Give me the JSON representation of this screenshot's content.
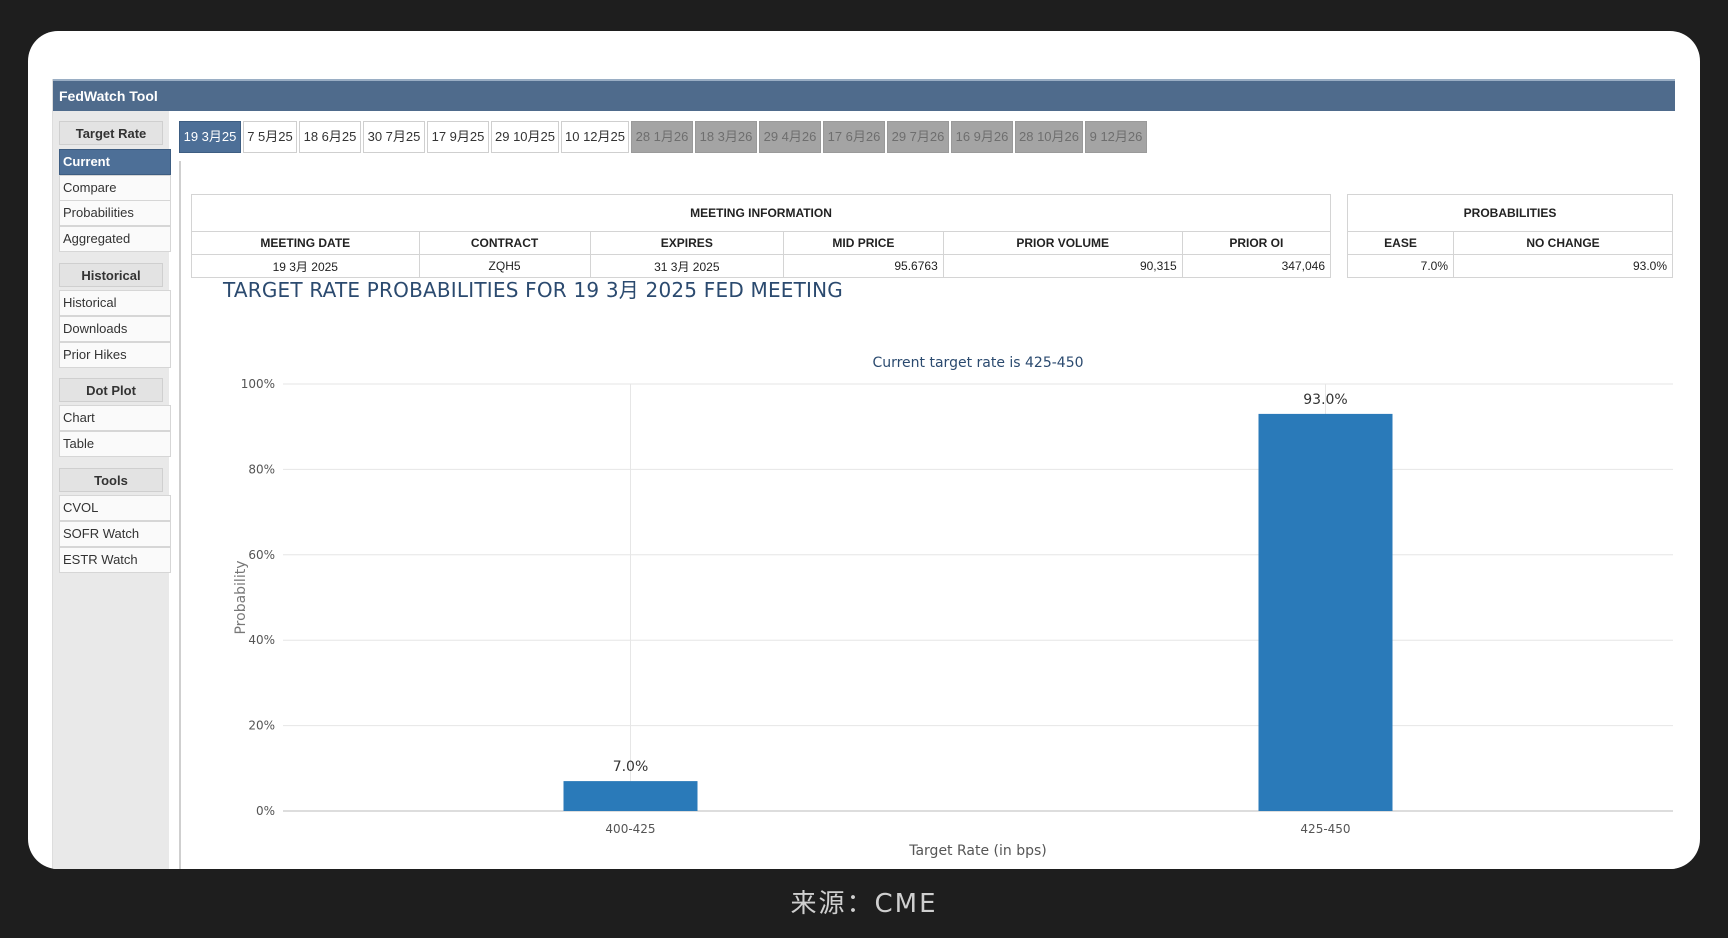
{
  "app": {
    "title": "FedWatch Tool"
  },
  "sidebar": {
    "sections": [
      {
        "heading": "Target Rate",
        "items": [
          "Current",
          "Compare",
          "Probabilities",
          "Aggregated"
        ]
      },
      {
        "heading": "Historical",
        "items": [
          "Historical",
          "Downloads",
          "Prior Hikes"
        ]
      },
      {
        "heading": "Dot Plot",
        "items": [
          "Chart",
          "Table"
        ]
      },
      {
        "heading": "Tools",
        "items": [
          "CVOL",
          "SOFR Watch",
          "ESTR Watch"
        ]
      }
    ],
    "active_item": "Current"
  },
  "meeting_tabs": [
    "19 3月25",
    "7 5月25",
    "18 6月25",
    "30 7月25",
    "17 9月25",
    "29 10月25",
    "10 12月25",
    "28 1月26",
    "18 3月26",
    "29 4月26",
    "17 6月26",
    "29 7月26",
    "16 9月26",
    "28 10月26",
    "9 12月26"
  ],
  "meeting_info": {
    "title": "MEETING INFORMATION",
    "headers": [
      "MEETING DATE",
      "CONTRACT",
      "EXPIRES",
      "MID PRICE",
      "PRIOR VOLUME",
      "PRIOR OI"
    ],
    "values": [
      "19 3月 2025",
      "ZQH5",
      "31 3月 2025",
      "95.6763",
      "90,315",
      "347,046"
    ]
  },
  "probabilities": {
    "title": "PROBABILITIES",
    "headers": [
      "EASE",
      "NO CHANGE"
    ],
    "values": [
      "7.0%",
      "93.0%"
    ]
  },
  "chart_title": "TARGET RATE PROBABILITIES FOR 19 3月 2025 FED MEETING",
  "chart_data": {
    "type": "bar",
    "subtitle": "Current target rate is 425-450",
    "categories": [
      "400-425",
      "425-450"
    ],
    "values": [
      7.0,
      93.0
    ],
    "data_labels": [
      "7.0%",
      "93.0%"
    ],
    "xlabel": "Target Rate (in bps)",
    "ylabel": "Probability",
    "ylim": [
      0,
      100
    ],
    "yticks": [
      "0%",
      "20%",
      "40%",
      "60%",
      "80%",
      "100%"
    ],
    "grid": true,
    "bar_color": "#2a7ab9"
  },
  "caption": "来源：CME"
}
